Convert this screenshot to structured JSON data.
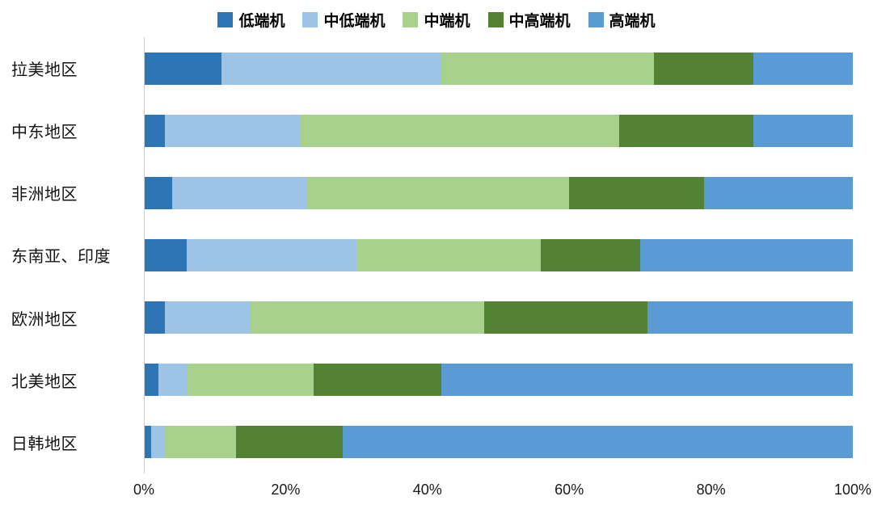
{
  "chart_data": {
    "type": "bar",
    "orientation": "horizontal",
    "stacked": true,
    "stack_mode": "percent",
    "title": "",
    "xlabel": "",
    "ylabel": "",
    "xlim": [
      0,
      100
    ],
    "grid": false,
    "legend_position": "top",
    "categories": [
      "拉美地区",
      "中东地区",
      "非洲地区",
      "东南亚、印度",
      "欧洲地区",
      "北美地区",
      "日韩地区"
    ],
    "series": [
      {
        "name": "低端机",
        "color": "#2e75b6",
        "values": [
          11,
          3,
          4,
          6,
          3,
          2,
          1
        ]
      },
      {
        "name": "中低端机",
        "color": "#9dc3e6",
        "values": [
          31,
          19,
          19,
          24,
          12,
          4,
          2
        ]
      },
      {
        "name": "中端机",
        "color": "#a9d18e",
        "values": [
          30,
          45,
          37,
          26,
          33,
          18,
          10
        ]
      },
      {
        "name": "中高端机",
        "color": "#548235",
        "values": [
          14,
          19,
          19,
          14,
          23,
          18,
          15
        ]
      },
      {
        "name": "高端机",
        "color": "#5b9bd5",
        "values": [
          14,
          14,
          21,
          30,
          29,
          58,
          72
        ]
      }
    ],
    "x_ticks": [
      "0%",
      "20%",
      "40%",
      "60%",
      "80%",
      "100%"
    ]
  }
}
